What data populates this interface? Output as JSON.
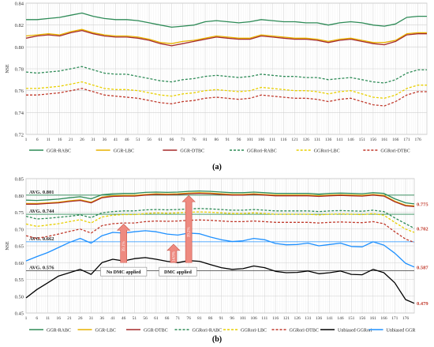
{
  "figure": {
    "label_a": "(a)",
    "label_b": "(b)"
  },
  "chart_data": [
    {
      "panel": "(a)",
      "type": "line",
      "title": "",
      "xlabel": "",
      "ylabel": "NSE",
      "ylim": [
        0.72,
        0.84
      ],
      "yticks": [
        0.72,
        0.74,
        0.76,
        0.78,
        0.8,
        0.82,
        0.84
      ],
      "ytick_labels": [
        "0.72",
        "0.74",
        "0.76",
        "0.78",
        "0.80",
        "0.82",
        "0.84"
      ],
      "xlim": [
        1,
        180
      ],
      "xtick_labels": [
        "1",
        "6",
        "11",
        "16",
        "21",
        "26",
        "31",
        "36",
        "41",
        "46",
        "51",
        "56",
        "61",
        "66",
        "71",
        "76",
        "81",
        "86",
        "91",
        "96",
        "101",
        "106",
        "111",
        "116",
        "121",
        "126",
        "131",
        "136",
        "141",
        "146",
        "151",
        "156",
        "161",
        "166",
        "171",
        "176"
      ],
      "grid": true,
      "legend_position": "bottom",
      "x": [
        1,
        6,
        11,
        16,
        21,
        26,
        31,
        36,
        41,
        46,
        51,
        56,
        61,
        66,
        71,
        76,
        81,
        86,
        91,
        96,
        101,
        106,
        111,
        116,
        121,
        126,
        131,
        136,
        141,
        146,
        151,
        156,
        161,
        166,
        171,
        176,
        180
      ],
      "series": [
        {
          "name": "GGR-RABC",
          "color": "#2e8b57",
          "dash": "solid",
          "values": [
            0.825,
            0.825,
            0.826,
            0.827,
            0.829,
            0.831,
            0.828,
            0.826,
            0.825,
            0.825,
            0.824,
            0.822,
            0.82,
            0.818,
            0.819,
            0.82,
            0.823,
            0.824,
            0.823,
            0.822,
            0.823,
            0.825,
            0.824,
            0.823,
            0.823,
            0.822,
            0.822,
            0.82,
            0.822,
            0.823,
            0.822,
            0.82,
            0.819,
            0.821,
            0.827,
            0.828,
            0.828
          ]
        },
        {
          "name": "GGR-LBC",
          "color": "#e8b200",
          "dash": "solid",
          "values": [
            0.81,
            0.811,
            0.812,
            0.811,
            0.814,
            0.816,
            0.813,
            0.811,
            0.81,
            0.81,
            0.809,
            0.807,
            0.804,
            0.803,
            0.805,
            0.806,
            0.808,
            0.81,
            0.809,
            0.808,
            0.808,
            0.811,
            0.81,
            0.809,
            0.808,
            0.808,
            0.807,
            0.805,
            0.807,
            0.808,
            0.806,
            0.804,
            0.804,
            0.806,
            0.812,
            0.813,
            0.813
          ]
        },
        {
          "name": "GGR-DTBC",
          "color": "#a52a2a",
          "dash": "solid",
          "values": [
            0.808,
            0.81,
            0.811,
            0.81,
            0.813,
            0.815,
            0.812,
            0.81,
            0.809,
            0.809,
            0.808,
            0.806,
            0.803,
            0.801,
            0.803,
            0.805,
            0.807,
            0.809,
            0.808,
            0.807,
            0.807,
            0.81,
            0.809,
            0.808,
            0.807,
            0.807,
            0.806,
            0.804,
            0.806,
            0.807,
            0.805,
            0.803,
            0.802,
            0.805,
            0.811,
            0.812,
            0.812
          ]
        },
        {
          "name": "GGRori-RABC",
          "color": "#2e8b57",
          "dash": "dashed",
          "values": [
            0.777,
            0.776,
            0.777,
            0.778,
            0.78,
            0.782,
            0.779,
            0.776,
            0.775,
            0.775,
            0.773,
            0.771,
            0.769,
            0.768,
            0.77,
            0.771,
            0.773,
            0.774,
            0.773,
            0.772,
            0.773,
            0.775,
            0.774,
            0.773,
            0.773,
            0.772,
            0.772,
            0.77,
            0.771,
            0.772,
            0.77,
            0.768,
            0.767,
            0.77,
            0.776,
            0.779,
            0.779
          ]
        },
        {
          "name": "GGRori-LBC",
          "color": "#e8cf00",
          "dash": "dashed",
          "values": [
            0.762,
            0.762,
            0.763,
            0.764,
            0.766,
            0.768,
            0.765,
            0.762,
            0.761,
            0.761,
            0.76,
            0.758,
            0.756,
            0.755,
            0.757,
            0.758,
            0.76,
            0.761,
            0.76,
            0.759,
            0.76,
            0.763,
            0.762,
            0.761,
            0.76,
            0.76,
            0.759,
            0.757,
            0.759,
            0.76,
            0.757,
            0.754,
            0.753,
            0.756,
            0.762,
            0.765,
            0.765
          ]
        },
        {
          "name": "GGRori-DTBC",
          "color": "#c0392b",
          "dash": "dashed",
          "values": [
            0.756,
            0.756,
            0.757,
            0.758,
            0.76,
            0.762,
            0.759,
            0.756,
            0.755,
            0.754,
            0.753,
            0.751,
            0.749,
            0.748,
            0.75,
            0.751,
            0.753,
            0.754,
            0.753,
            0.752,
            0.753,
            0.756,
            0.755,
            0.754,
            0.753,
            0.753,
            0.752,
            0.75,
            0.752,
            0.753,
            0.75,
            0.747,
            0.746,
            0.75,
            0.756,
            0.759,
            0.759
          ]
        }
      ]
    },
    {
      "panel": "(b)",
      "type": "line",
      "title": "",
      "xlabel": "",
      "ylabel": "NSE",
      "ylim": [
        0.45,
        0.85
      ],
      "yticks": [
        0.45,
        0.5,
        0.55,
        0.6,
        0.65,
        0.7,
        0.75,
        0.8,
        0.85
      ],
      "ytick_labels": [
        "0.45",
        "0.50",
        "0.55",
        "0.60",
        "0.65",
        "0.70",
        "0.75",
        "0.80",
        "0.85"
      ],
      "xlim": [
        1,
        180
      ],
      "xtick_labels": [
        "1",
        "6",
        "11",
        "16",
        "21",
        "26",
        "31",
        "36",
        "41",
        "46",
        "51",
        "56",
        "61",
        "66",
        "71",
        "76",
        "81",
        "86",
        "91",
        "96",
        "101",
        "106",
        "111",
        "116",
        "121",
        "126",
        "131",
        "136",
        "141",
        "146",
        "151",
        "156",
        "161",
        "166",
        "171",
        "176"
      ],
      "grid": true,
      "legend_position": "bottom",
      "reference_lines": [
        {
          "value": 0.801,
          "label": "AVG. 0.801",
          "color": "#2e8b57"
        },
        {
          "value": 0.744,
          "label": "AVG. 0.744",
          "color": "#2e8b57"
        },
        {
          "value": 0.662,
          "label": "AVG. 0.662",
          "color": "#1e90ff"
        },
        {
          "value": 0.576,
          "label": "AVG. 0.576",
          "color": "#555555"
        }
      ],
      "end_labels": [
        {
          "value": 0.775,
          "label": "0.775"
        },
        {
          "value": 0.702,
          "label": "0.702"
        },
        {
          "value": 0.587,
          "label": "0.587"
        },
        {
          "value": 0.479,
          "label": "0.479"
        }
      ],
      "annotations": [
        {
          "text": "No DMC applied",
          "x": 46
        },
        {
          "text": "DMC applied",
          "x": 71
        }
      ],
      "arrows": [
        {
          "x": 46,
          "from": 0.6,
          "to": 0.715,
          "label": "39.1%"
        },
        {
          "x": 69,
          "from": 0.6,
          "to": 0.655,
          "label": "14.9%"
        },
        {
          "x": 76,
          "from": 0.6,
          "to": 0.8,
          "label": "39.2%"
        }
      ],
      "x": [
        1,
        6,
        11,
        16,
        21,
        26,
        31,
        36,
        41,
        46,
        51,
        56,
        61,
        66,
        71,
        76,
        81,
        86,
        91,
        96,
        101,
        106,
        111,
        116,
        121,
        126,
        131,
        136,
        141,
        146,
        151,
        156,
        161,
        166,
        171,
        176,
        180
      ],
      "series": [
        {
          "name": "GGR-RABC",
          "color": "#2e8b57",
          "dash": "solid",
          "values": [
            0.786,
            0.785,
            0.787,
            0.789,
            0.793,
            0.796,
            0.79,
            0.802,
            0.805,
            0.806,
            0.806,
            0.809,
            0.81,
            0.809,
            0.81,
            0.812,
            0.813,
            0.812,
            0.81,
            0.808,
            0.808,
            0.81,
            0.808,
            0.806,
            0.806,
            0.806,
            0.806,
            0.804,
            0.806,
            0.807,
            0.806,
            0.805,
            0.808,
            0.806,
            0.79,
            0.778,
            0.775
          ]
        },
        {
          "name": "GGR-LBC",
          "color": "#e8b200",
          "dash": "solid",
          "values": [
            0.776,
            0.776,
            0.778,
            0.78,
            0.784,
            0.787,
            0.78,
            0.795,
            0.799,
            0.8,
            0.8,
            0.803,
            0.805,
            0.804,
            0.805,
            0.807,
            0.808,
            0.807,
            0.805,
            0.803,
            0.803,
            0.805,
            0.803,
            0.801,
            0.801,
            0.801,
            0.801,
            0.799,
            0.801,
            0.802,
            0.801,
            0.8,
            0.803,
            0.8,
            0.783,
            0.771,
            0.769
          ]
        },
        {
          "name": "GGR-DTBC",
          "color": "#a52a2a",
          "dash": "solid",
          "values": [
            0.774,
            0.774,
            0.776,
            0.778,
            0.782,
            0.785,
            0.778,
            0.793,
            0.797,
            0.798,
            0.798,
            0.801,
            0.803,
            0.802,
            0.803,
            0.805,
            0.806,
            0.805,
            0.803,
            0.801,
            0.801,
            0.803,
            0.801,
            0.799,
            0.799,
            0.799,
            0.799,
            0.797,
            0.799,
            0.8,
            0.799,
            0.798,
            0.801,
            0.798,
            0.781,
            0.769,
            0.767
          ]
        },
        {
          "name": "GGRori-RABC",
          "color": "#2e8b57",
          "dash": "dashed",
          "values": [
            0.738,
            0.73,
            0.732,
            0.735,
            0.738,
            0.742,
            0.734,
            0.748,
            0.752,
            0.754,
            0.754,
            0.757,
            0.758,
            0.757,
            0.758,
            0.76,
            0.761,
            0.76,
            0.758,
            0.756,
            0.756,
            0.758,
            0.756,
            0.754,
            0.754,
            0.754,
            0.754,
            0.752,
            0.754,
            0.755,
            0.754,
            0.753,
            0.756,
            0.752,
            0.733,
            0.716,
            0.702
          ]
        },
        {
          "name": "GGRori-LBC",
          "color": "#e8cf00",
          "dash": "dashed",
          "values": [
            0.715,
            0.708,
            0.712,
            0.716,
            0.722,
            0.728,
            0.718,
            0.736,
            0.741,
            0.743,
            0.743,
            0.746,
            0.748,
            0.747,
            0.748,
            0.75,
            0.751,
            0.75,
            0.748,
            0.746,
            0.746,
            0.748,
            0.746,
            0.744,
            0.744,
            0.744,
            0.744,
            0.742,
            0.744,
            0.745,
            0.744,
            0.743,
            0.746,
            0.741,
            0.72,
            0.7,
            0.69
          ]
        },
        {
          "name": "GGRori-DTBC",
          "color": "#c0392b",
          "dash": "dashed",
          "values": [
            0.68,
            0.672,
            0.678,
            0.685,
            0.693,
            0.7,
            0.688,
            0.71,
            0.716,
            0.718,
            0.718,
            0.722,
            0.724,
            0.723,
            0.724,
            0.726,
            0.727,
            0.726,
            0.724,
            0.722,
            0.722,
            0.724,
            0.722,
            0.72,
            0.72,
            0.72,
            0.72,
            0.718,
            0.72,
            0.721,
            0.72,
            0.719,
            0.722,
            0.716,
            0.692,
            0.67,
            0.66
          ]
        },
        {
          "name": "Unbiased GGRori",
          "color": "#000000",
          "dash": "solid",
          "values": [
            0.495,
            0.52,
            0.54,
            0.56,
            0.57,
            0.58,
            0.565,
            0.6,
            0.61,
            0.605,
            0.612,
            0.615,
            0.61,
            0.604,
            0.6,
            0.606,
            0.604,
            0.594,
            0.585,
            0.58,
            0.582,
            0.59,
            0.585,
            0.574,
            0.57,
            0.571,
            0.575,
            0.567,
            0.57,
            0.575,
            0.565,
            0.564,
            0.58,
            0.57,
            0.54,
            0.49,
            0.479
          ]
        },
        {
          "name": "Unbiased GGR",
          "color": "#1e90ff",
          "dash": "solid",
          "values": [
            0.605,
            0.618,
            0.63,
            0.645,
            0.66,
            0.672,
            0.658,
            0.68,
            0.69,
            0.688,
            0.692,
            0.695,
            0.692,
            0.685,
            0.682,
            0.688,
            0.686,
            0.676,
            0.668,
            0.663,
            0.665,
            0.672,
            0.668,
            0.657,
            0.653,
            0.654,
            0.658,
            0.65,
            0.654,
            0.658,
            0.648,
            0.647,
            0.662,
            0.652,
            0.628,
            0.598,
            0.587
          ]
        }
      ]
    }
  ]
}
